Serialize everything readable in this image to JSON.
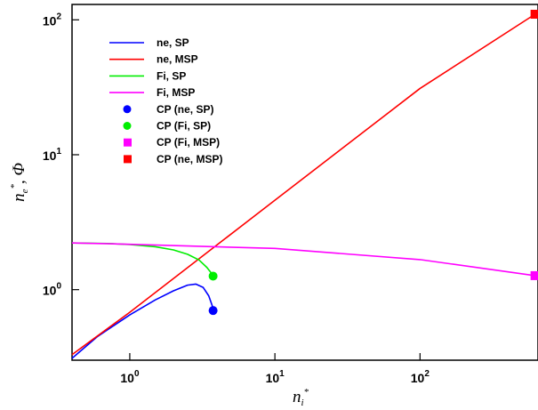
{
  "chart_data": {
    "type": "line",
    "x_scale": "log",
    "y_scale": "log",
    "xlim": [
      0.4,
      650
    ],
    "ylim": [
      0.3,
      130
    ],
    "xlabel": {
      "main": "n",
      "subscript": "i",
      "superscript": "*"
    },
    "ylabel": {
      "main": "n",
      "subscript": "e",
      "superscript": "*",
      "suffix": ", Φ"
    },
    "x_ticks": [
      {
        "value": 1,
        "base": "10",
        "exp": "0"
      },
      {
        "value": 10,
        "base": "10",
        "exp": "1"
      },
      {
        "value": 100,
        "base": "10",
        "exp": "2"
      }
    ],
    "y_ticks": [
      {
        "value": 1,
        "base": "10",
        "exp": "0"
      },
      {
        "value": 10,
        "base": "10",
        "exp": "1"
      },
      {
        "value": 100,
        "base": "10",
        "exp": "2"
      }
    ],
    "grid": false,
    "legend_position": "top-left",
    "series": [
      {
        "name": "ne, SP",
        "kind": "line",
        "color": "#0000ff",
        "x": [
          0.4,
          0.6,
          1.0,
          1.5,
          2.0,
          2.5,
          2.85,
          3.2,
          3.5,
          3.7,
          3.75
        ],
        "y": [
          0.31,
          0.45,
          0.65,
          0.84,
          0.98,
          1.08,
          1.1,
          1.04,
          0.9,
          0.76,
          0.7
        ]
      },
      {
        "name": "ne, MSP",
        "kind": "line",
        "color": "#ff0000",
        "x": [
          0.4,
          1,
          10,
          100,
          620
        ],
        "y": [
          0.33,
          0.68,
          4.6,
          31,
          110
        ]
      },
      {
        "name": "Fi, SP",
        "kind": "line",
        "color": "#00ee00",
        "x": [
          0.4,
          0.7,
          1.0,
          1.5,
          2.0,
          2.5,
          3.0,
          3.4,
          3.7,
          3.75
        ],
        "y": [
          2.22,
          2.2,
          2.16,
          2.08,
          1.97,
          1.83,
          1.66,
          1.46,
          1.3,
          1.26
        ]
      },
      {
        "name": "Fi, MSP",
        "kind": "line",
        "color": "#ff00ff",
        "x": [
          0.4,
          1,
          10,
          100,
          620
        ],
        "y": [
          2.22,
          2.17,
          2.02,
          1.67,
          1.27
        ]
      },
      {
        "name": "CP (ne, SP)",
        "kind": "marker",
        "shape": "circle",
        "color": "#0000ff",
        "x": [
          3.75
        ],
        "y": [
          0.7
        ]
      },
      {
        "name": "CP (Fi, SP)",
        "kind": "marker",
        "shape": "circle",
        "color": "#00ee00",
        "x": [
          3.75
        ],
        "y": [
          1.26
        ]
      },
      {
        "name": "CP (Fi, MSP)",
        "kind": "marker",
        "shape": "square",
        "color": "#ff00ff",
        "x": [
          620
        ],
        "y": [
          1.27
        ]
      },
      {
        "name": "CP (ne, MSP)",
        "kind": "marker",
        "shape": "square",
        "color": "#ff0000",
        "x": [
          620
        ],
        "y": [
          110
        ]
      }
    ]
  }
}
